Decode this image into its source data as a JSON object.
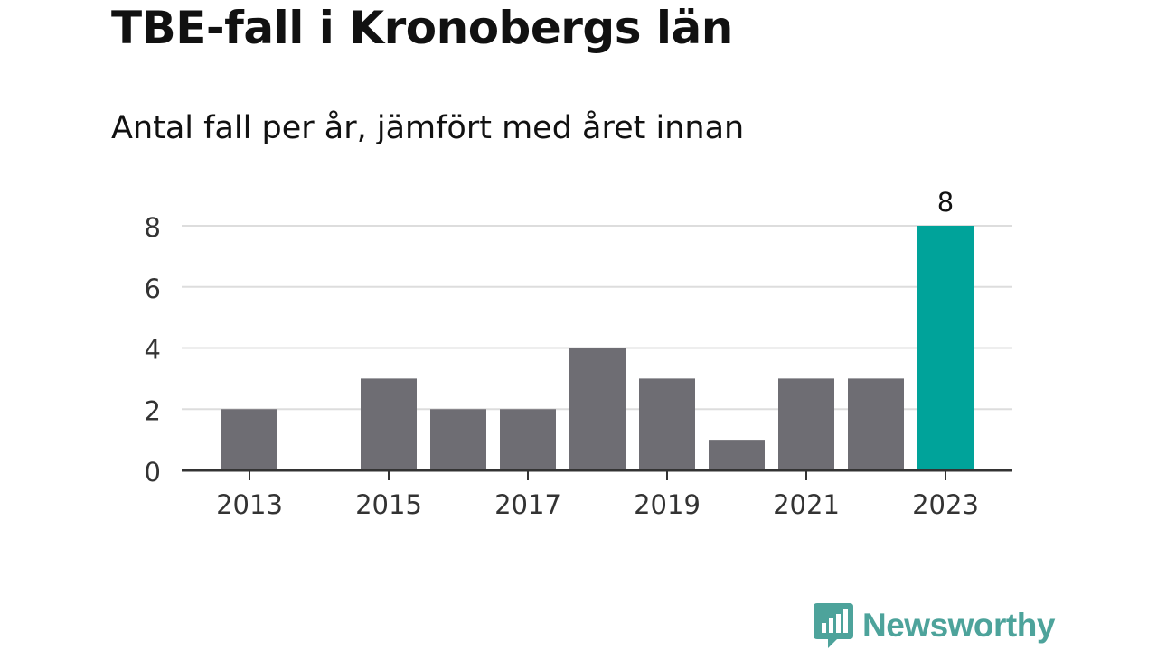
{
  "title": "TBE-fall i Kronobergs län",
  "subtitle": "Antal fall per år, jämfört med året innan",
  "brand": {
    "name": "Newsworthy",
    "icon": "newsworthy-logo-icon",
    "color": "#4da39b"
  },
  "colors": {
    "bar": "#6e6d73",
    "highlight": "#00a39a",
    "grid": "#dddddd",
    "axis": "#333333",
    "text": "#111111"
  },
  "chart_data": {
    "type": "bar",
    "title": "TBE-fall i Kronobergs län",
    "subtitle": "Antal fall per år, jämfört med året innan",
    "xlabel": "",
    "ylabel": "",
    "categories": [
      "2013",
      "2014",
      "2015",
      "2016",
      "2017",
      "2018",
      "2019",
      "2020",
      "2021",
      "2022",
      "2023"
    ],
    "values": [
      2,
      0,
      3,
      2,
      2,
      4,
      3,
      1,
      3,
      3,
      8
    ],
    "x_tick_labels": [
      "2013",
      "2015",
      "2017",
      "2019",
      "2021",
      "2023"
    ],
    "y_ticks": [
      0,
      2,
      4,
      6,
      8
    ],
    "ylim": [
      0,
      8
    ],
    "grid": true,
    "legend": "none",
    "highlight_category": "2023",
    "data_labels": [
      {
        "category": "2023",
        "text": "8"
      }
    ]
  }
}
